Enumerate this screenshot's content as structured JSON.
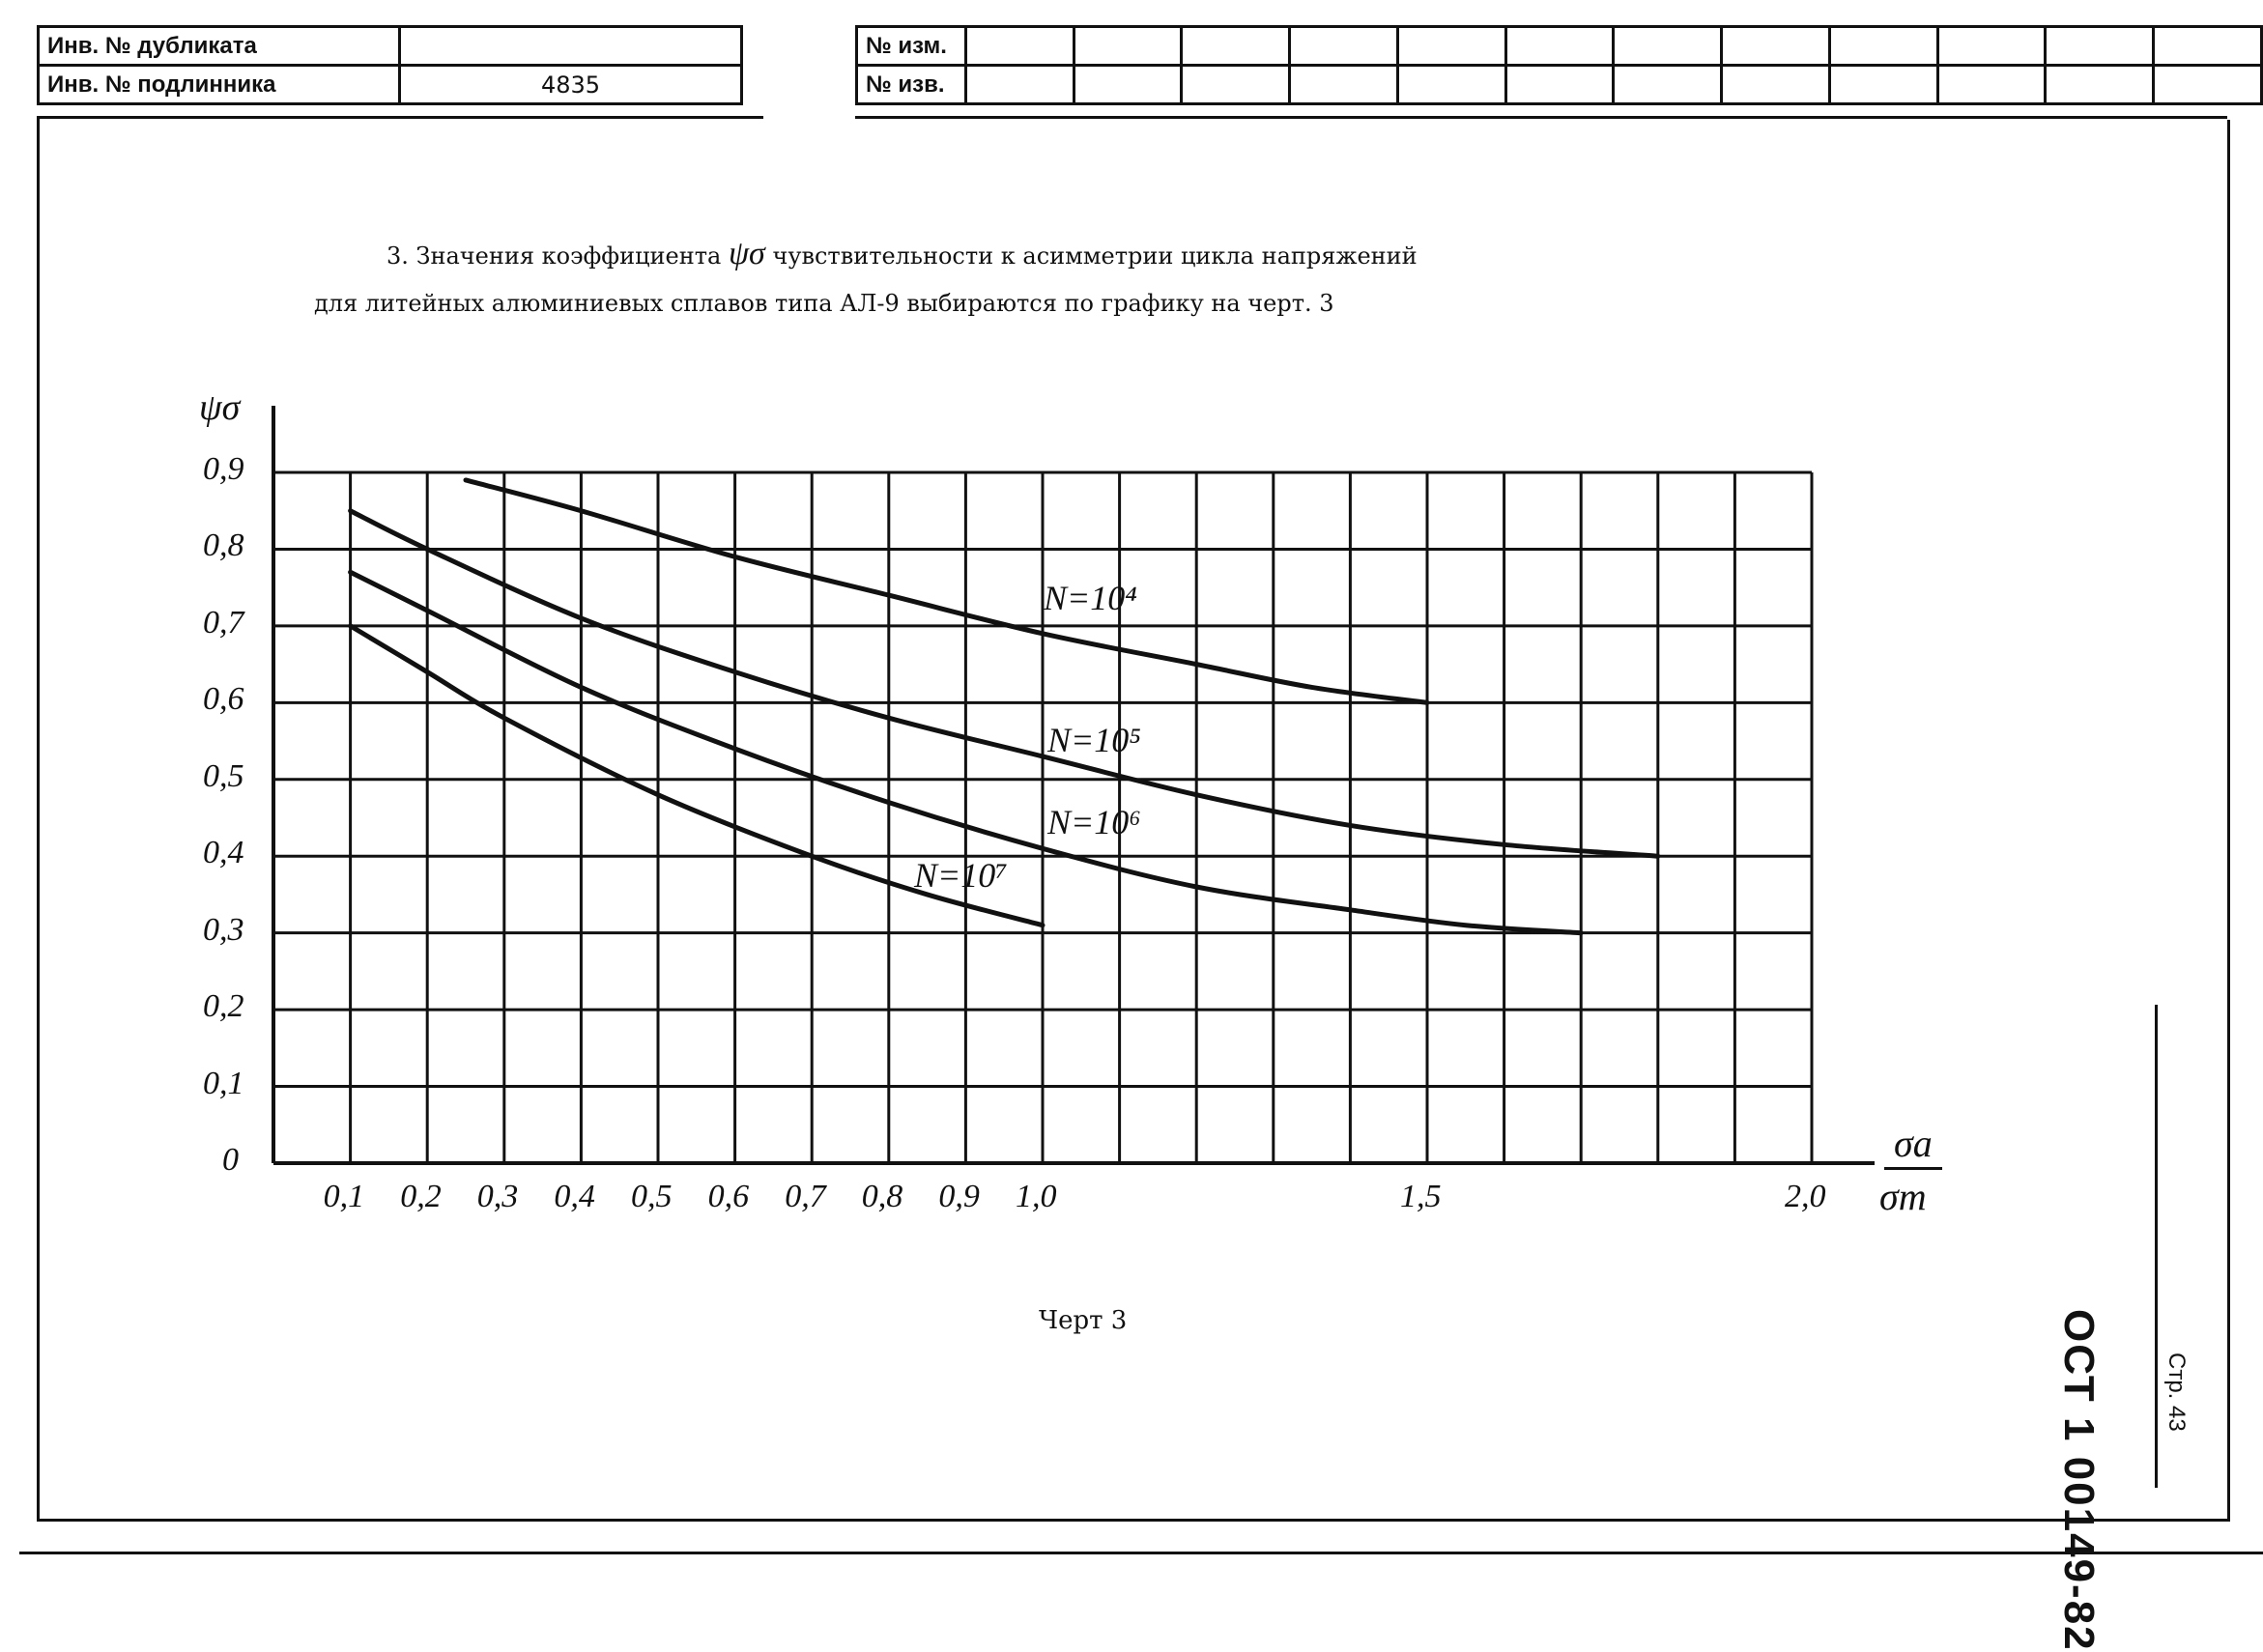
{
  "stamp_left": {
    "rows": [
      {
        "label": "Инв. № дубликата",
        "value": ""
      },
      {
        "label": "Инв. № подлинника",
        "value": "4835"
      }
    ]
  },
  "stamp_right": {
    "rows": [
      {
        "label": "№ изм."
      },
      {
        "label": "№ изв."
      }
    ]
  },
  "paragraph": {
    "line1_prefix": "3. Значения коэффициента",
    "line1_symbol": "ψσ",
    "line1_suffix": "чувствительности к асимметрии цикла напряжений",
    "line2": "для литейных алюминиевых сплавов типа АЛ-9 выбираются по графику на черт. 3"
  },
  "caption": "Черт 3",
  "side": {
    "code": "ОСТ 1 00149-82",
    "page": "Стр. 43"
  },
  "chart_data": {
    "type": "line",
    "ylabel": "ψσ",
    "xlabel_numerator": "σa",
    "xlabel_denominator": "σm",
    "xlim": [
      0,
      2.0
    ],
    "ylim": [
      0,
      0.9
    ],
    "x_ticks": [
      "0,1",
      "0,2",
      "0,3",
      "0,4",
      "0,5",
      "0,6",
      "0,7",
      "0,8",
      "0,9",
      "1,0",
      "1,5",
      "2,0"
    ],
    "y_ticks": [
      "0",
      "0,1",
      "0,2",
      "0,3",
      "0,4",
      "0,5",
      "0,6",
      "0,7",
      "0,8",
      "0,9"
    ],
    "grid": true,
    "series": [
      {
        "name": "N=10⁴",
        "points": [
          [
            0.25,
            0.89
          ],
          [
            0.4,
            0.85
          ],
          [
            0.6,
            0.79
          ],
          [
            0.8,
            0.74
          ],
          [
            1.0,
            0.69
          ],
          [
            1.2,
            0.65
          ],
          [
            1.35,
            0.62
          ],
          [
            1.5,
            0.6
          ]
        ]
      },
      {
        "name": "N=10⁵",
        "points": [
          [
            0.1,
            0.85
          ],
          [
            0.2,
            0.8
          ],
          [
            0.4,
            0.71
          ],
          [
            0.6,
            0.64
          ],
          [
            0.8,
            0.58
          ],
          [
            1.0,
            0.53
          ],
          [
            1.2,
            0.48
          ],
          [
            1.4,
            0.44
          ],
          [
            1.6,
            0.415
          ],
          [
            1.8,
            0.4
          ]
        ]
      },
      {
        "name": "N=10⁶",
        "points": [
          [
            0.1,
            0.77
          ],
          [
            0.2,
            0.72
          ],
          [
            0.4,
            0.62
          ],
          [
            0.6,
            0.54
          ],
          [
            0.8,
            0.47
          ],
          [
            1.0,
            0.41
          ],
          [
            1.2,
            0.36
          ],
          [
            1.4,
            0.33
          ],
          [
            1.55,
            0.31
          ],
          [
            1.7,
            0.3
          ]
        ]
      },
      {
        "name": "N=10⁷",
        "points": [
          [
            0.1,
            0.7
          ],
          [
            0.2,
            0.64
          ],
          [
            0.3,
            0.58
          ],
          [
            0.5,
            0.48
          ],
          [
            0.7,
            0.4
          ],
          [
            0.85,
            0.35
          ],
          [
            1.0,
            0.31
          ]
        ]
      }
    ]
  }
}
